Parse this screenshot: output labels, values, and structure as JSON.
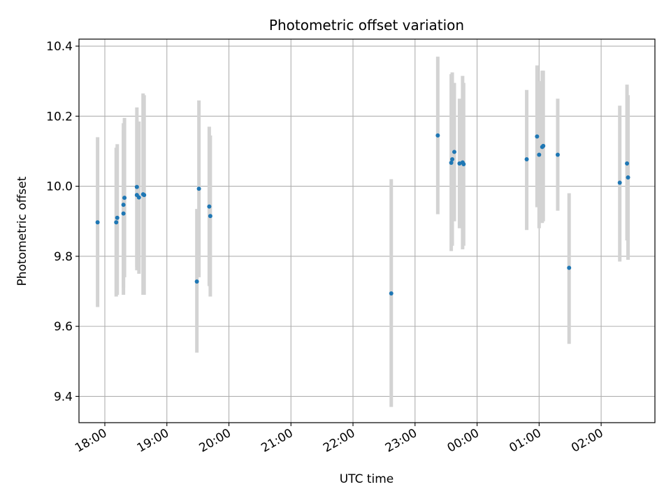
{
  "chart_data": {
    "type": "scatter",
    "title": "Photometric offset variation",
    "xlabel": "UTC time",
    "ylabel": "Photometric offset",
    "x_axis": "time",
    "xlim": [
      "17:35",
      "02:52"
    ],
    "ylim": [
      9.325,
      10.42
    ],
    "x_ticks": [
      {
        "t": "18:00",
        "label": "18:00"
      },
      {
        "t": "19:00",
        "label": "19:00"
      },
      {
        "t": "20:00",
        "label": "20:00"
      },
      {
        "t": "21:00",
        "label": "21:00"
      },
      {
        "t": "22:00",
        "label": "22:00"
      },
      {
        "t": "23:00",
        "label": "23:00"
      },
      {
        "t": "00:00",
        "label": "00:00"
      },
      {
        "t": "01:00",
        "label": "01:00"
      },
      {
        "t": "02:00",
        "label": "02:00"
      }
    ],
    "y_ticks": [
      {
        "v": 9.4,
        "label": "9.4"
      },
      {
        "v": 9.6,
        "label": "9.6"
      },
      {
        "v": 9.8,
        "label": "9.8"
      },
      {
        "v": 10.0,
        "label": "10.0"
      },
      {
        "v": 10.2,
        "label": "10.2"
      },
      {
        "v": 10.4,
        "label": "10.4"
      }
    ],
    "grid": true,
    "colors": {
      "marker": "#1f77b4",
      "errorbar": "#d3d3d3",
      "grid": "#b0b0b0"
    },
    "series": [
      {
        "points": [
          {
            "t": "17:53",
            "y": 9.897,
            "lo": 9.655,
            "hi": 10.14
          },
          {
            "t": "18:11",
            "y": 9.897,
            "lo": 9.685,
            "hi": 10.11
          },
          {
            "t": "18:12",
            "y": 9.91,
            "lo": 9.69,
            "hi": 10.12
          },
          {
            "t": "18:18",
            "y": 9.922,
            "lo": 9.69,
            "hi": 10.16
          },
          {
            "t": "18:18",
            "y": 9.947,
            "lo": 9.71,
            "hi": 10.18
          },
          {
            "t": "18:19",
            "y": 9.967,
            "lo": 9.74,
            "hi": 10.195
          },
          {
            "t": "18:31",
            "y": 9.998,
            "lo": 9.77,
            "hi": 10.225
          },
          {
            "t": "18:31",
            "y": 9.975,
            "lo": 9.76,
            "hi": 10.19
          },
          {
            "t": "18:33",
            "y": 9.968,
            "lo": 9.75,
            "hi": 10.185
          },
          {
            "t": "18:37",
            "y": 9.977,
            "lo": 9.69,
            "hi": 10.265
          },
          {
            "t": "18:38",
            "y": 9.975,
            "lo": 9.69,
            "hi": 10.26
          },
          {
            "t": "19:29",
            "y": 9.728,
            "lo": 9.525,
            "hi": 9.935
          },
          {
            "t": "19:31",
            "y": 9.993,
            "lo": 9.74,
            "hi": 10.245
          },
          {
            "t": "19:41",
            "y": 9.942,
            "lo": 9.715,
            "hi": 10.17
          },
          {
            "t": "19:42",
            "y": 9.915,
            "lo": 9.685,
            "hi": 10.145
          },
          {
            "t": "22:37",
            "y": 9.694,
            "lo": 9.37,
            "hi": 10.02
          },
          {
            "t": "23:22",
            "y": 10.145,
            "lo": 9.92,
            "hi": 10.37
          },
          {
            "t": "23:35",
            "y": 10.067,
            "lo": 9.815,
            "hi": 10.32
          },
          {
            "t": "23:36",
            "y": 10.077,
            "lo": 9.83,
            "hi": 10.325
          },
          {
            "t": "23:38",
            "y": 10.098,
            "lo": 9.9,
            "hi": 10.295
          },
          {
            "t": "23:43",
            "y": 10.065,
            "lo": 9.88,
            "hi": 10.25
          },
          {
            "t": "23:46",
            "y": 10.068,
            "lo": 9.82,
            "hi": 10.315
          },
          {
            "t": "23:47",
            "y": 10.063,
            "lo": 9.83,
            "hi": 10.295
          },
          {
            "t": "00:48",
            "y": 10.077,
            "lo": 9.875,
            "hi": 10.275
          },
          {
            "t": "00:58",
            "y": 10.142,
            "lo": 9.94,
            "hi": 10.345
          },
          {
            "t": "01:00",
            "y": 10.09,
            "lo": 9.88,
            "hi": 10.3
          },
          {
            "t": "01:03",
            "y": 10.112,
            "lo": 9.895,
            "hi": 10.33
          },
          {
            "t": "01:04",
            "y": 10.115,
            "lo": 9.9,
            "hi": 10.33
          },
          {
            "t": "01:18",
            "y": 10.09,
            "lo": 9.93,
            "hi": 10.25
          },
          {
            "t": "01:29",
            "y": 9.767,
            "lo": 9.55,
            "hi": 9.98
          },
          {
            "t": "02:18",
            "y": 10.01,
            "lo": 9.785,
            "hi": 10.23
          },
          {
            "t": "02:25",
            "y": 10.065,
            "lo": 9.845,
            "hi": 10.29
          },
          {
            "t": "02:26",
            "y": 10.025,
            "lo": 9.79,
            "hi": 10.26
          }
        ]
      }
    ]
  }
}
